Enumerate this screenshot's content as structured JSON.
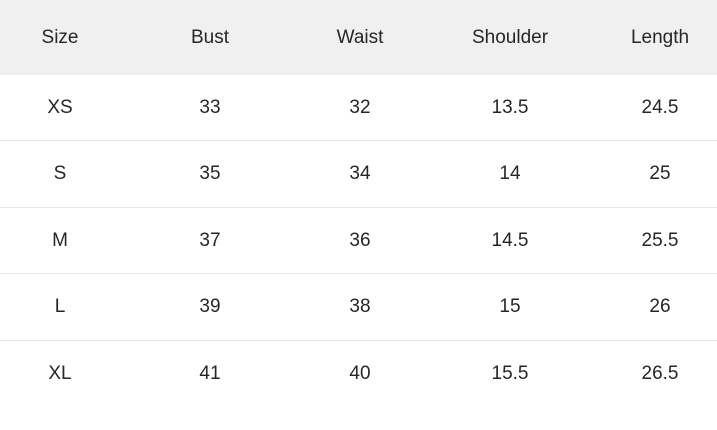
{
  "table": {
    "header": [
      "Size",
      "Bust",
      "Waist",
      "Shoulder",
      "Length"
    ],
    "rows": [
      [
        "XS",
        33,
        32,
        13.5,
        24.5
      ],
      [
        "S",
        35,
        34,
        14,
        25
      ],
      [
        "M",
        37,
        36,
        14.5,
        25.5
      ],
      [
        "L",
        39,
        38,
        15,
        26
      ],
      [
        "XL",
        41,
        40,
        15.5,
        26.5
      ]
    ]
  }
}
